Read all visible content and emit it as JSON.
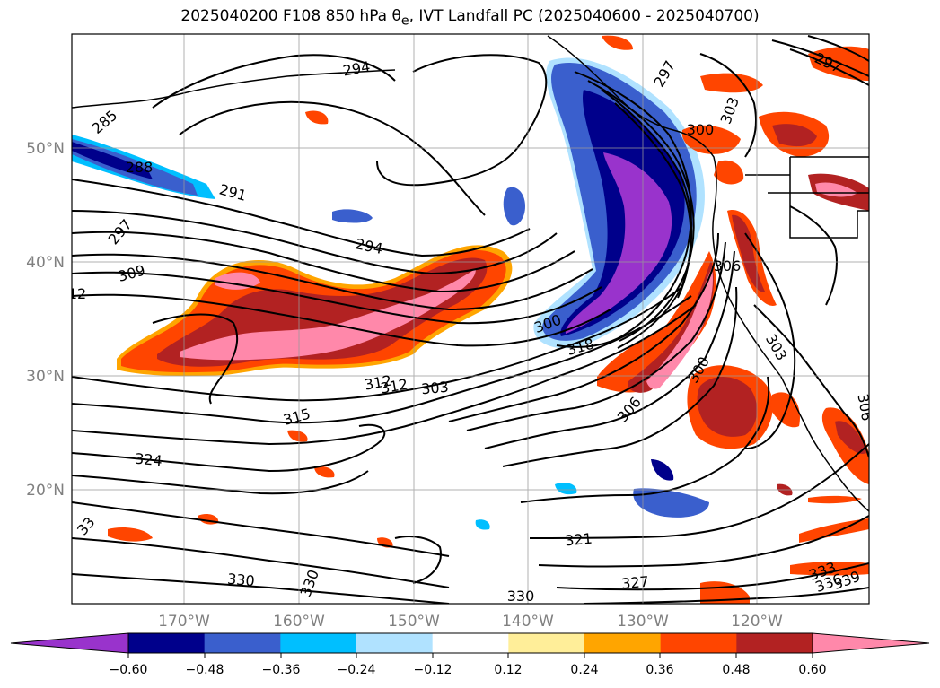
{
  "title_html": "2025040200 F108 850 hPa θ<sub>e</sub>, IVT Landfall PC (2025040600 - 2025040700)",
  "map": {
    "lon_labels": [
      "170°W",
      "160°W",
      "150°W",
      "140°W",
      "130°W",
      "120°W"
    ],
    "lat_labels": [
      "50°N",
      "40°N",
      "30°N",
      "20°N"
    ]
  },
  "contour_labels": [
    "285",
    "288",
    "291",
    "294",
    "297",
    "309",
    "312",
    "303",
    "312",
    "315",
    "318",
    "324",
    "321",
    "330",
    "330",
    "330",
    "327",
    "306",
    "300",
    "303",
    "306",
    "300",
    "297",
    "303",
    "300",
    "333",
    "336",
    "339",
    "297",
    "294",
    "33",
    "306",
    "12"
  ],
  "colorbar": {
    "tick_labels": [
      "−0.60",
      "−0.48",
      "−0.36",
      "−0.24",
      "−0.12",
      "0.12",
      "0.24",
      "0.36",
      "0.48",
      "0.60"
    ],
    "colors": [
      "#9933cc",
      "#00008b",
      "#3a5fcd",
      "#00bfff",
      "#b0e2ff",
      "#ffffff",
      "#ffee99",
      "#ffa500",
      "#ff4500",
      "#b22222",
      "#ff88aa"
    ]
  }
}
